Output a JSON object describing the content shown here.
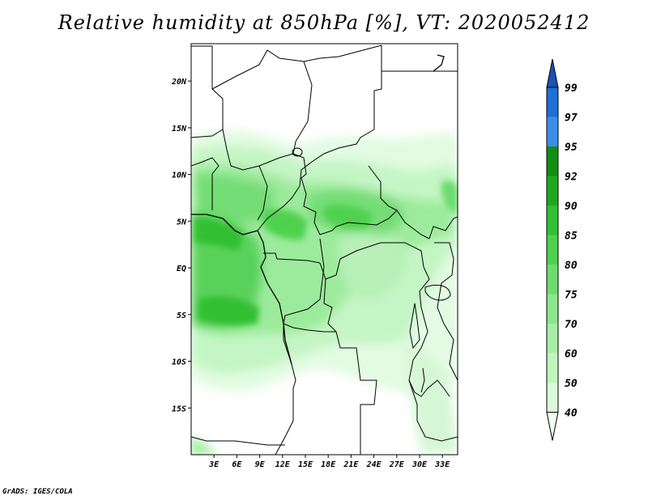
{
  "title": "Relative humidity at 850hPa [%], VT: 2020052412",
  "credit": "GrADS: IGES/COLA",
  "map": {
    "lat_range": [
      -20,
      24
    ],
    "lon_range": [
      0,
      35
    ],
    "lat_labels": [
      "20N",
      "15N",
      "10N",
      "5N",
      "EQ",
      "5S",
      "10S",
      "15S"
    ],
    "lat_values": [
      20,
      15,
      10,
      5,
      0,
      -5,
      -10,
      -15
    ],
    "lon_labels": [
      "3E",
      "6E",
      "9E",
      "12E",
      "15E",
      "18E",
      "21E",
      "24E",
      "27E",
      "30E",
      "33E"
    ],
    "lon_values": [
      3,
      6,
      9,
      12,
      15,
      18,
      21,
      24,
      27,
      30,
      33
    ]
  },
  "colorbar": {
    "labels": [
      "40",
      "50",
      "60",
      "70",
      "75",
      "80",
      "85",
      "90",
      "92",
      "95",
      "97",
      "99"
    ],
    "colors": [
      "#f0fff0",
      "#d9fbd9",
      "#c0f5c0",
      "#a6eea6",
      "#8ce68c",
      "#6ddc6d",
      "#4fd14f",
      "#33c033",
      "#1fa81f",
      "#118f11",
      "#3b8ee8",
      "#1e6fd6",
      "#1a52b5"
    ]
  }
}
